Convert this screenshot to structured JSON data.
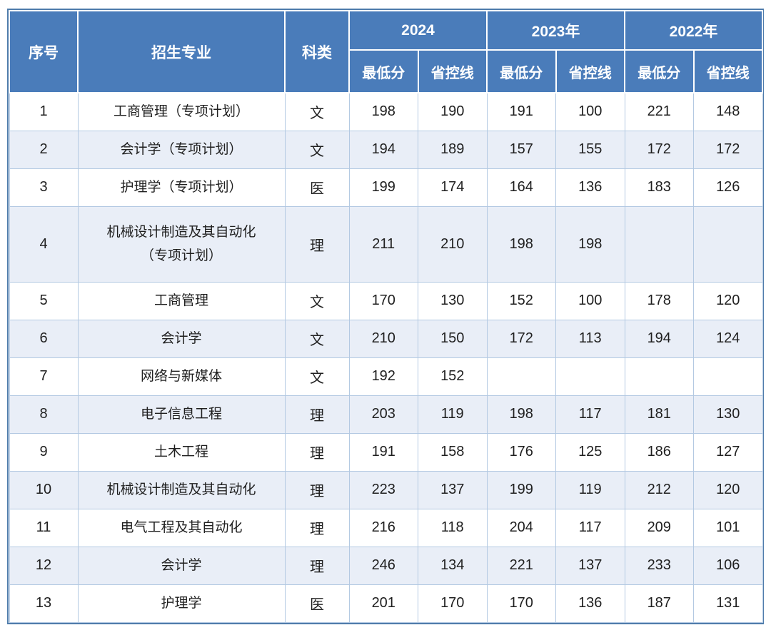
{
  "table": {
    "headers": {
      "index": "序号",
      "major": "招生专业",
      "category": "科类"
    },
    "year_groups": [
      {
        "label": "2024"
      },
      {
        "label": "2023年"
      },
      {
        "label": "2022年"
      }
    ],
    "score_headers": [
      "最低分",
      "省控线"
    ],
    "rows": [
      {
        "index": "1",
        "major": "工商管理（专项计划）",
        "category": "文",
        "scores": [
          "198",
          "190",
          "191",
          "100",
          "221",
          "148"
        ]
      },
      {
        "index": "2",
        "major": "会计学（专项计划）",
        "category": "文",
        "scores": [
          "194",
          "189",
          "157",
          "155",
          "172",
          "172"
        ]
      },
      {
        "index": "3",
        "major": "护理学（专项计划）",
        "category": "医",
        "scores": [
          "199",
          "174",
          "164",
          "136",
          "183",
          "126"
        ]
      },
      {
        "index": "4",
        "major": "机械设计制造及其自动化\n（专项计划）",
        "category": "理",
        "scores": [
          "211",
          "210",
          "198",
          "198",
          "",
          ""
        ]
      },
      {
        "index": "5",
        "major": "工商管理",
        "category": "文",
        "scores": [
          "170",
          "130",
          "152",
          "100",
          "178",
          "120"
        ]
      },
      {
        "index": "6",
        "major": "会计学",
        "category": "文",
        "scores": [
          "210",
          "150",
          "172",
          "113",
          "194",
          "124"
        ]
      },
      {
        "index": "7",
        "major": "网络与新媒体",
        "category": "文",
        "scores": [
          "192",
          "152",
          "",
          "",
          "",
          ""
        ]
      },
      {
        "index": "8",
        "major": "电子信息工程",
        "category": "理",
        "scores": [
          "203",
          "119",
          "198",
          "117",
          "181",
          "130"
        ]
      },
      {
        "index": "9",
        "major": "土木工程",
        "category": "理",
        "scores": [
          "191",
          "158",
          "176",
          "125",
          "186",
          "127"
        ]
      },
      {
        "index": "10",
        "major": "机械设计制造及其自动化",
        "category": "理",
        "scores": [
          "223",
          "137",
          "199",
          "119",
          "212",
          "120"
        ]
      },
      {
        "index": "11",
        "major": "电气工程及其自动化",
        "category": "理",
        "scores": [
          "216",
          "118",
          "204",
          "117",
          "209",
          "101"
        ]
      },
      {
        "index": "12",
        "major": "会计学",
        "category": "理",
        "scores": [
          "246",
          "134",
          "221",
          "137",
          "233",
          "106"
        ]
      },
      {
        "index": "13",
        "major": "护理学",
        "category": "医",
        "scores": [
          "201",
          "170",
          "170",
          "136",
          "187",
          "131"
        ]
      }
    ]
  },
  "colors": {
    "header_bg": "#4a7cba",
    "header_text": "#ffffff",
    "stripe_bg": "#e9eef7",
    "gridline": "#b3c9e2",
    "outer_border": "#4f7cab",
    "body_text": "#1f1f1f"
  }
}
